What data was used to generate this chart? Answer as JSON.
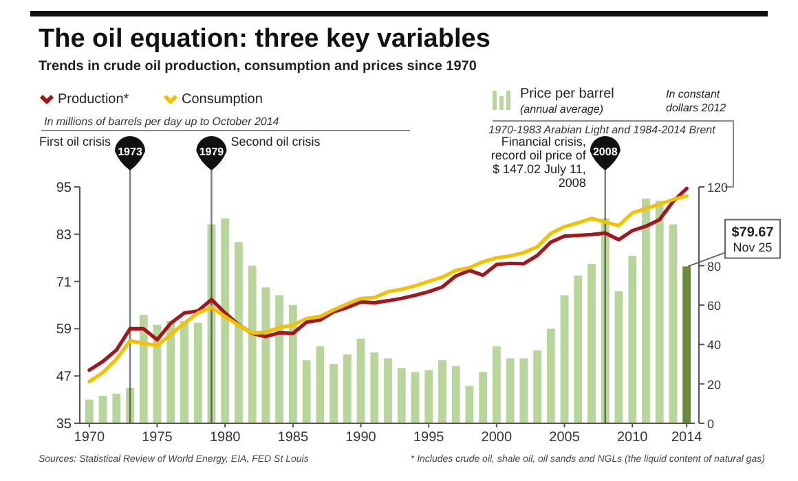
{
  "chart_data": {
    "type": "line",
    "title": "The oil equation: three key variables",
    "subtitle": "Trends in crude oil production, consumption and prices since 1970",
    "ylabel": "In millions of barrels per day up to October 2014",
    "y2label": "1970-1983 Arabian Light and 1984-2014 Brent",
    "x": [
      1970,
      1971,
      1972,
      1973,
      1974,
      1975,
      1976,
      1977,
      1978,
      1979,
      1980,
      1981,
      1982,
      1983,
      1984,
      1985,
      1986,
      1987,
      1988,
      1989,
      1990,
      1991,
      1992,
      1993,
      1994,
      1995,
      1996,
      1997,
      1998,
      1999,
      2000,
      2001,
      2002,
      2003,
      2004,
      2005,
      2006,
      2007,
      2008,
      2009,
      2010,
      2011,
      2012,
      2013,
      2014
    ],
    "xlim": [
      1969.3,
      2014.6
    ],
    "xticks": [
      1970,
      1975,
      1980,
      1985,
      1990,
      1995,
      2000,
      2005,
      2010,
      2014
    ],
    "ylim": [
      35,
      95
    ],
    "yticks": [
      35,
      47,
      59,
      71,
      83,
      95
    ],
    "y2lim": [
      0,
      120
    ],
    "y2ticks": [
      0,
      20,
      40,
      60,
      80,
      120
    ],
    "series": [
      {
        "name": "Price per barrel (annual average)",
        "type": "bar",
        "axis": "y2",
        "color": "#b8d69c",
        "colors": [
          "#b8d69c",
          "#b8d69c",
          "#b8d69c",
          "#b8d69c",
          "#b8d69c",
          "#b8d69c",
          "#b8d69c",
          "#b8d69c",
          "#b8d69c",
          "#b8d69c",
          "#b8d69c",
          "#b8d69c",
          "#b8d69c",
          "#b8d69c",
          "#b8d69c",
          "#b8d69c",
          "#b8d69c",
          "#b8d69c",
          "#b8d69c",
          "#b8d69c",
          "#b8d69c",
          "#b8d69c",
          "#b8d69c",
          "#b8d69c",
          "#b8d69c",
          "#b8d69c",
          "#b8d69c",
          "#b8d69c",
          "#b8d69c",
          "#b8d69c",
          "#b8d69c",
          "#b8d69c",
          "#b8d69c",
          "#b8d69c",
          "#b8d69c",
          "#b8d69c",
          "#b8d69c",
          "#b8d69c",
          "#b8d69c",
          "#b8d69c",
          "#b8d69c",
          "#b8d69c",
          "#b8d69c",
          "#b8d69c",
          "#6a8a3a"
        ],
        "values": [
          12,
          14,
          15,
          18,
          55,
          50,
          52,
          52,
          51,
          101,
          104,
          92,
          80,
          69,
          65,
          60,
          32,
          39,
          30,
          35,
          43,
          36,
          33,
          28,
          26,
          27,
          32,
          29,
          19,
          26,
          39,
          33,
          33,
          37,
          48,
          65,
          75,
          81,
          104,
          67,
          85,
          114,
          113,
          101,
          79.67
        ],
        "value_labels": [
          null,
          null,
          null,
          null,
          null,
          null,
          null,
          null,
          null,
          null,
          null,
          null,
          null,
          null,
          null,
          null,
          null,
          null,
          null,
          null,
          null,
          null,
          null,
          null,
          null,
          null,
          null,
          null,
          null,
          null,
          null,
          null,
          null,
          null,
          null,
          null,
          null,
          null,
          null,
          null,
          null,
          null,
          null,
          null,
          "$79.67 Nov 25"
        ]
      },
      {
        "name": "Production*",
        "color": "#a3161d",
        "values": [
          48.5,
          50.7,
          53.6,
          59,
          59,
          56.2,
          60.4,
          63,
          63.5,
          66.4,
          63,
          60,
          57.8,
          57,
          58,
          57.8,
          60.7,
          61.2,
          63.3,
          64.4,
          65.8,
          65.6,
          66.1,
          66.7,
          67.5,
          68.4,
          69.6,
          72.4,
          73.8,
          72.6,
          75.3,
          75.6,
          75.5,
          77.6,
          81,
          82.5,
          82.7,
          82.9,
          83.3,
          81.6,
          83.9,
          85,
          86.7,
          91.3,
          94.6
        ]
      },
      {
        "name": "Consumption",
        "color": "#f2c200",
        "values": [
          45.6,
          47.9,
          51.3,
          55.9,
          55.3,
          54.7,
          57.6,
          60.4,
          63,
          64.4,
          62.1,
          59.9,
          57.9,
          58.1,
          59.3,
          59.9,
          61.6,
          62.1,
          63.8,
          65.3,
          66.7,
          66.9,
          68.4,
          69,
          69.9,
          71,
          72.1,
          73.8,
          74.5,
          76,
          77,
          77.5,
          78.3,
          79.8,
          83.2,
          84.9,
          85.9,
          87,
          86.1,
          85.2,
          88.4,
          89.5,
          90.6,
          91.8,
          92.7
        ]
      }
    ],
    "ref_lines": [
      {
        "axis": "x",
        "value": 1973,
        "label": "1973",
        "color": "#111111"
      },
      {
        "axis": "x",
        "value": 1979,
        "label": "1979",
        "color": "#111111"
      },
      {
        "axis": "x",
        "value": 2008,
        "label": "2008",
        "color": "#111111"
      }
    ],
    "annotations": [
      "First oil crisis",
      "Second oil crisis",
      "Financial crisis, record oil price of $ 147.02 July 11, 2008",
      "In constant dollars 2012",
      "Sources: Statistical Review of World Energy, EIA, FED St Louis",
      "* Includes crude oil, shale oil, oil sands and NGLs (the liquid content of natural gas)"
    ],
    "legend": "top",
    "line_style": "solid"
  }
}
